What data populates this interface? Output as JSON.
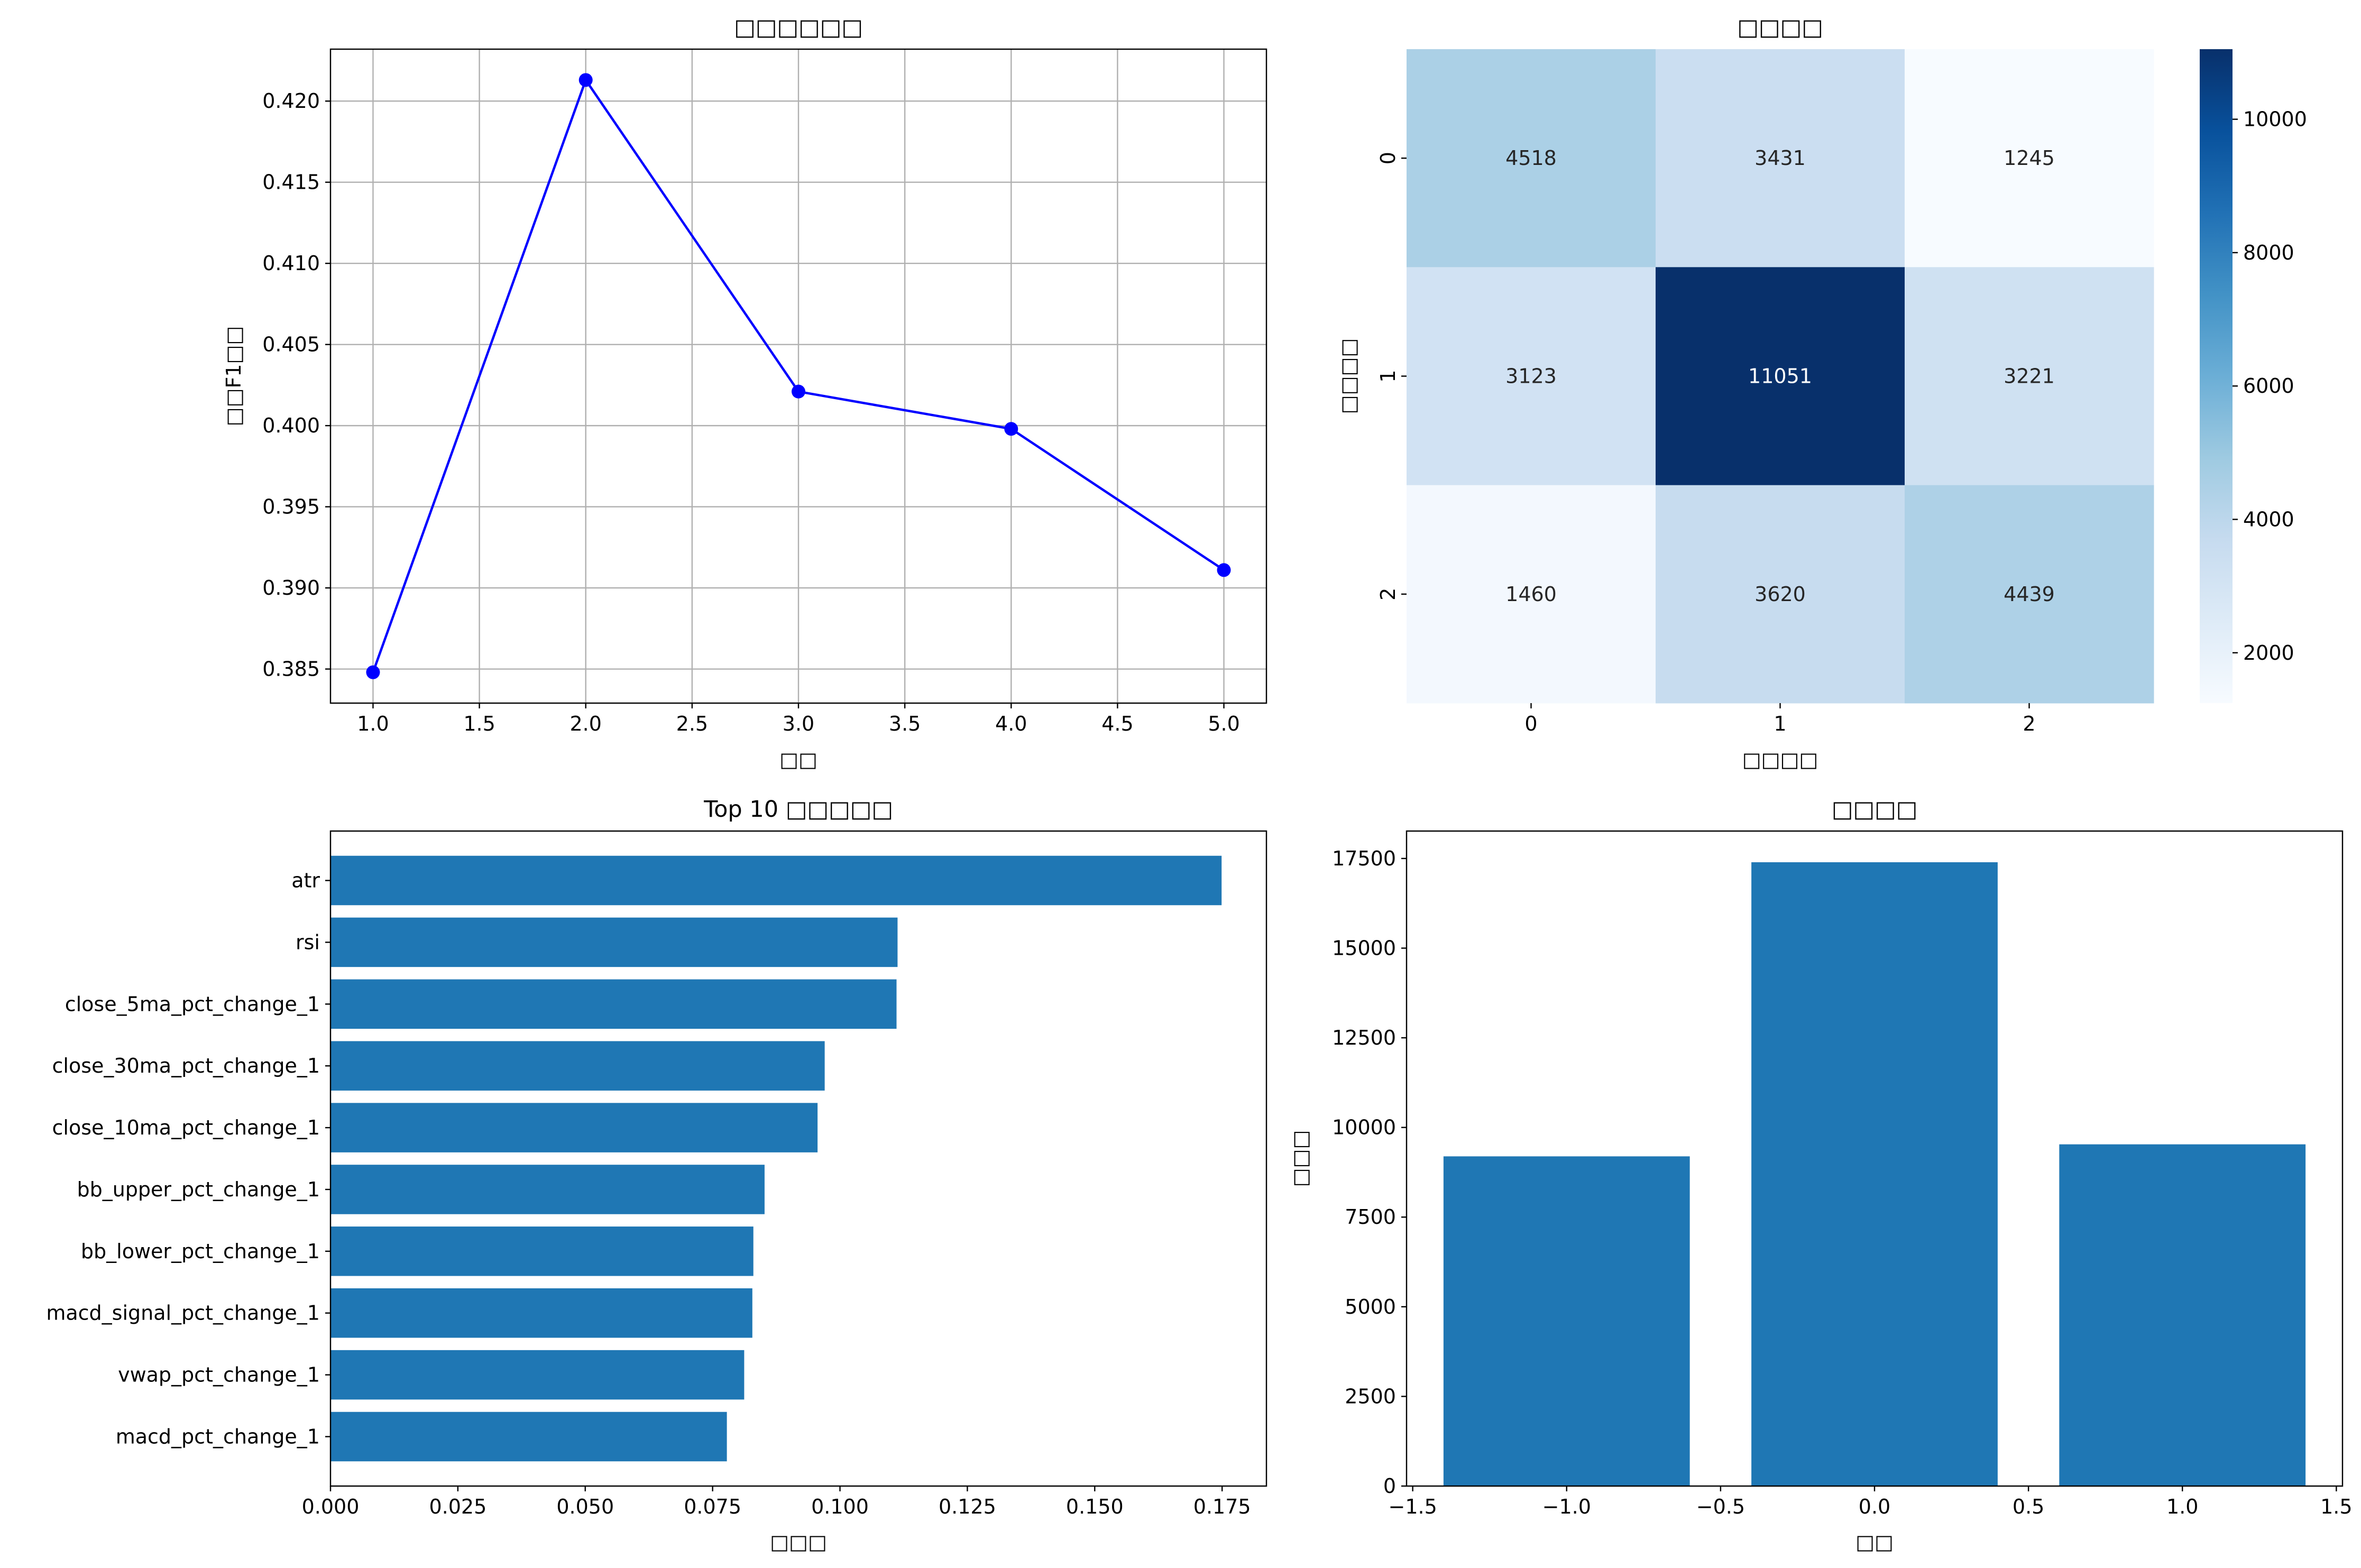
{
  "chart_data": [
    {
      "id": "line",
      "type": "line",
      "title": "□□□□□□",
      "xlabel": "□□",
      "ylabel": "□□F1□□",
      "x": [
        1.0,
        2.0,
        3.0,
        4.0,
        5.0
      ],
      "y": [
        0.3848,
        0.4213,
        0.4021,
        0.3998,
        0.3911
      ],
      "xlim": [
        0.8,
        5.2
      ],
      "ylim": [
        0.3829,
        0.4232
      ],
      "xticks": [
        1.0,
        1.5,
        2.0,
        2.5,
        3.0,
        3.5,
        4.0,
        4.5,
        5.0
      ],
      "xtick_labels": [
        "1.0",
        "1.5",
        "2.0",
        "2.5",
        "3.0",
        "3.5",
        "4.0",
        "4.5",
        "5.0"
      ],
      "yticks": [
        0.385,
        0.39,
        0.395,
        0.4,
        0.405,
        0.41,
        0.415,
        0.42
      ],
      "ytick_labels": [
        "0.385",
        "0.390",
        "0.395",
        "0.400",
        "0.405",
        "0.410",
        "0.415",
        "0.420"
      ],
      "grid": true,
      "color": "#0000ff"
    },
    {
      "id": "heatmap",
      "type": "heatmap",
      "title": "□□□□",
      "xlabel": "□□□□",
      "ylabel": "□□□□",
      "rows": [
        "0",
        "1",
        "2"
      ],
      "cols": [
        "0",
        "1",
        "2"
      ],
      "values": [
        [
          4518,
          3431,
          1245
        ],
        [
          3123,
          11051,
          3221
        ],
        [
          1460,
          3620,
          4439
        ]
      ],
      "vmin": 1245,
      "vmax": 11051,
      "colorbar_ticks": [
        2000,
        4000,
        6000,
        8000,
        10000
      ],
      "colorbar_tick_labels": [
        "2000",
        "4000",
        "6000",
        "8000",
        "10000"
      ],
      "colormap": "Blues"
    },
    {
      "id": "features",
      "type": "bar",
      "orientation": "horizontal",
      "title": "Top 10 □□□□□",
      "xlabel": "□□□",
      "categories": [
        "atr",
        "rsi",
        "close_5ma_pct_change_1",
        "close_30ma_pct_change_1",
        "close_10ma_pct_change_1",
        "bb_upper_pct_change_1",
        "bb_lower_pct_change_1",
        "macd_signal_pct_change_1",
        "vwap_pct_change_1",
        "macd_pct_change_1"
      ],
      "values": [
        0.1749,
        0.1113,
        0.1111,
        0.097,
        0.0956,
        0.0852,
        0.083,
        0.0828,
        0.0812,
        0.0778
      ],
      "xlim": [
        0,
        0.1837
      ],
      "xticks": [
        0.0,
        0.025,
        0.05,
        0.075,
        0.1,
        0.125,
        0.15,
        0.175
      ],
      "xtick_labels": [
        "0.000",
        "0.025",
        "0.050",
        "0.075",
        "0.100",
        "0.125",
        "0.150",
        "0.175"
      ],
      "color": "#1f77b4"
    },
    {
      "id": "distribution",
      "type": "bar",
      "title": "□□□□",
      "xlabel": "□□",
      "ylabel": "□□□",
      "x": [
        -1,
        0,
        1
      ],
      "values": [
        9194,
        17395,
        9529
      ],
      "bar_width": 0.8,
      "xlim": [
        -1.52,
        1.52
      ],
      "ylim": [
        0,
        18265
      ],
      "xticks": [
        -1.5,
        -1.0,
        -0.5,
        0.0,
        0.5,
        1.0,
        1.5
      ],
      "xtick_labels": [
        "−1.5",
        "−1.0",
        "−0.5",
        "0.0",
        "0.5",
        "1.0",
        "1.5"
      ],
      "yticks": [
        0,
        2500,
        5000,
        7500,
        10000,
        12500,
        15000,
        17500
      ],
      "ytick_labels": [
        "0",
        "2500",
        "5000",
        "7500",
        "10000",
        "12500",
        "15000",
        "17500"
      ],
      "color": "#1f77b4"
    }
  ]
}
